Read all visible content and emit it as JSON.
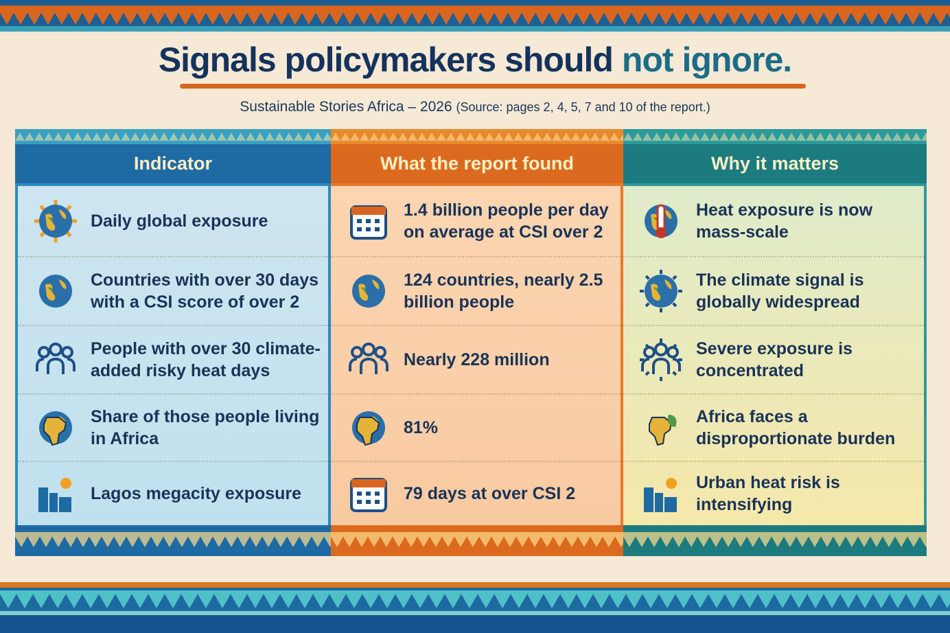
{
  "title": {
    "main": "Signals policymakers should ",
    "accent": "not ignore."
  },
  "subtitle": {
    "main": "Sustainable Stories Africa – 2026 ",
    "source": "(Source: pages 2, 4, 5, 7 and 10 of the report.)"
  },
  "colors": {
    "blue": "#1e6aa3",
    "orange": "#db6a1e",
    "teal": "#1b7b7f",
    "navy": "#14335c"
  },
  "columns": [
    {
      "header": "Indicator",
      "rows": [
        {
          "icon": "sun-globe-icon",
          "text": "Daily global exposure"
        },
        {
          "icon": "globe-pin-icon",
          "text": "Countries with over 30 days with a CSI score of over 2"
        },
        {
          "icon": "people-group-icon",
          "text": "People with over 30 climate-added risky heat days"
        },
        {
          "icon": "africa-globe-icon",
          "text": "Share of those people living in Africa"
        },
        {
          "icon": "city-sun-icon",
          "text": "Lagos megacity exposure"
        }
      ]
    },
    {
      "header": "What the report found",
      "rows": [
        {
          "icon": "calendar-icon",
          "text": "1.4 billion people per day on average at CSI over 2"
        },
        {
          "icon": "globe-icon",
          "text": "124 countries, nearly 2.5 billion people"
        },
        {
          "icon": "people-group-icon",
          "text": "Nearly 228 million"
        },
        {
          "icon": "africa-map-icon",
          "text": "81%"
        },
        {
          "icon": "calendar-heat-icon",
          "text": "79 days at over CSI 2"
        }
      ]
    },
    {
      "header": "Why it matters",
      "rows": [
        {
          "icon": "thermometer-globe-icon",
          "text": "Heat exposure is now mass-scale"
        },
        {
          "icon": "globe-arrows-icon",
          "text": "The climate signal is globally widespread"
        },
        {
          "icon": "people-target-icon",
          "text": "Severe exposure is concentrated"
        },
        {
          "icon": "africa-leaf-icon",
          "text": "Africa faces a disproportionate burden"
        },
        {
          "icon": "city-heat-icon",
          "text": "Urban heat risk is intensifying"
        }
      ]
    }
  ]
}
